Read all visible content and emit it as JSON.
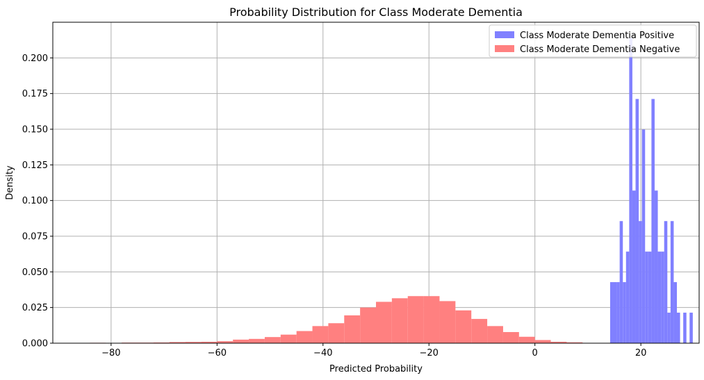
{
  "chart_data": {
    "type": "histogram",
    "title": "Probability Distribution for Class Moderate Dementia",
    "xlabel": "Predicted Probability",
    "ylabel": "Density",
    "xlim": [
      -91,
      31
    ],
    "ylim": [
      0,
      0.225
    ],
    "xticks": [
      -80,
      -60,
      -40,
      -20,
      0,
      20
    ],
    "xtick_labels": [
      "−80",
      "−60",
      "−40",
      "−20",
      "0",
      "20"
    ],
    "yticks": [
      0,
      0.025,
      0.05,
      0.075,
      0.1,
      0.125,
      0.15,
      0.175,
      0.2
    ],
    "ytick_labels": [
      "0.000",
      "0.025",
      "0.050",
      "0.075",
      "0.100",
      "0.125",
      "0.150",
      "0.175",
      "0.200"
    ],
    "grid": true,
    "legend_position": "top-right",
    "series": [
      {
        "name": "Class Moderate Dementia Positive",
        "color": "#8080ff",
        "bins": [
          [
            14.2,
            14.8,
            0.0428
          ],
          [
            14.8,
            15.4,
            0.0428
          ],
          [
            15.4,
            16.0,
            0.0428
          ],
          [
            16.0,
            16.6,
            0.0856
          ],
          [
            16.6,
            17.2,
            0.0428
          ],
          [
            17.2,
            17.8,
            0.0642
          ],
          [
            17.8,
            18.4,
            0.214
          ],
          [
            18.4,
            19.0,
            0.107
          ],
          [
            19.0,
            19.6,
            0.1712
          ],
          [
            19.6,
            20.2,
            0.0856
          ],
          [
            20.2,
            20.8,
            0.1498
          ],
          [
            20.8,
            21.4,
            0.0642
          ],
          [
            21.4,
            22.0,
            0.0642
          ],
          [
            22.0,
            22.6,
            0.1712
          ],
          [
            22.6,
            23.2,
            0.107
          ],
          [
            23.2,
            23.8,
            0.0642
          ],
          [
            23.8,
            24.4,
            0.0642
          ],
          [
            24.4,
            25.0,
            0.0856
          ],
          [
            25.0,
            25.6,
            0.0214
          ],
          [
            25.6,
            26.2,
            0.0856
          ],
          [
            26.2,
            26.8,
            0.0428
          ],
          [
            26.8,
            27.4,
            0.0214
          ],
          [
            27.4,
            28.0,
            0.0
          ],
          [
            28.0,
            28.6,
            0.0214
          ],
          [
            28.6,
            29.2,
            0.0
          ],
          [
            29.2,
            29.8,
            0.0214
          ]
        ]
      },
      {
        "name": "Class Moderate Dementia Negative",
        "color": "#ff8080",
        "bins": [
          [
            -84.0,
            -81.0,
            0.0003
          ],
          [
            -81.0,
            -78.0,
            0.0002
          ],
          [
            -78.0,
            -75.0,
            0.0004
          ],
          [
            -75.0,
            -72.0,
            0.0004
          ],
          [
            -72.0,
            -69.0,
            0.0005
          ],
          [
            -69.0,
            -66.0,
            0.0008
          ],
          [
            -66.0,
            -63.0,
            0.0009
          ],
          [
            -63.0,
            -60.0,
            0.001
          ],
          [
            -60.0,
            -57.0,
            0.0014
          ],
          [
            -57.0,
            -54.0,
            0.0025
          ],
          [
            -54.0,
            -51.0,
            0.003
          ],
          [
            -51.0,
            -48.0,
            0.0043
          ],
          [
            -48.0,
            -45.0,
            0.006
          ],
          [
            -45.0,
            -42.0,
            0.0085
          ],
          [
            -42.0,
            -39.0,
            0.012
          ],
          [
            -39.0,
            -36.0,
            0.014
          ],
          [
            -36.0,
            -33.0,
            0.0195
          ],
          [
            -33.0,
            -30.0,
            0.025
          ],
          [
            -30.0,
            -27.0,
            0.029
          ],
          [
            -27.0,
            -24.0,
            0.0315
          ],
          [
            -24.0,
            -21.0,
            0.033
          ],
          [
            -21.0,
            -18.0,
            0.033
          ],
          [
            -18.0,
            -15.0,
            0.0295
          ],
          [
            -15.0,
            -12.0,
            0.023
          ],
          [
            -12.0,
            -9.0,
            0.017
          ],
          [
            -9.0,
            -6.0,
            0.012
          ],
          [
            -6.0,
            -3.0,
            0.0078
          ],
          [
            -3.0,
            0.0,
            0.0045
          ],
          [
            0.0,
            3.0,
            0.0022
          ],
          [
            3.0,
            6.0,
            0.001
          ],
          [
            6.0,
            9.0,
            0.0006
          ]
        ]
      }
    ]
  }
}
